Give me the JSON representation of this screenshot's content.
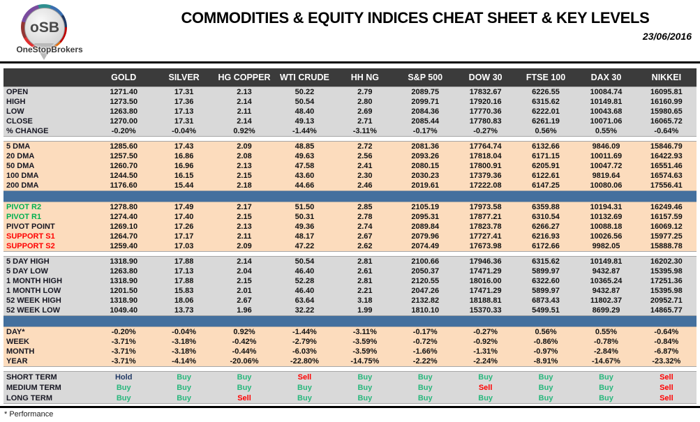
{
  "header": {
    "title": "COMMODITIES & EQUITY INDICES CHEAT SHEET & KEY LEVELS",
    "date": "23/06/2016",
    "logo_text": "oSB",
    "brand": "OneStopBrokers"
  },
  "colors": {
    "header_band": "#3b3b3b",
    "gray_band": "#d9d9d9",
    "peach_band": "#fcdcbd",
    "separator_blue": "#44709e",
    "pivot_green": "#00b050",
    "support_red": "#ff0000",
    "buy_green": "#28b77c",
    "sell_red": "#ff0000",
    "hold_navy": "#203864"
  },
  "table": {
    "columns": [
      "GOLD",
      "SILVER",
      "HG COPPER",
      "WTI CRUDE",
      "HH NG",
      "S&P 500",
      "DOW 30",
      "FTSE 100",
      "DAX 30",
      "NIKKEI"
    ],
    "sections": [
      {
        "name": "ohlc",
        "band": "gray",
        "after": "gap",
        "rows": [
          {
            "label": "OPEN",
            "values": [
              "1271.40",
              "17.31",
              "2.13",
              "50.22",
              "2.79",
              "2089.75",
              "17832.67",
              "6226.55",
              "10084.74",
              "16095.81"
            ]
          },
          {
            "label": "HIGH",
            "values": [
              "1273.50",
              "17.36",
              "2.14",
              "50.54",
              "2.80",
              "2099.71",
              "17920.16",
              "6315.62",
              "10149.81",
              "16160.99"
            ]
          },
          {
            "label": "LOW",
            "values": [
              "1263.80",
              "17.13",
              "2.11",
              "48.40",
              "2.69",
              "2084.36",
              "17770.36",
              "6222.01",
              "10043.68",
              "15980.65"
            ]
          },
          {
            "label": "CLOSE",
            "values": [
              "1270.00",
              "17.31",
              "2.14",
              "49.13",
              "2.71",
              "2085.44",
              "17780.83",
              "6261.19",
              "10071.06",
              "16065.72"
            ]
          },
          {
            "label": "% CHANGE",
            "values": [
              "-0.20%",
              "-0.04%",
              "0.92%",
              "-1.44%",
              "-3.11%",
              "-0.17%",
              "-0.27%",
              "0.56%",
              "0.55%",
              "-0.64%"
            ]
          }
        ]
      },
      {
        "name": "dma",
        "band": "peach",
        "after": "bar",
        "rows": [
          {
            "label": "5 DMA",
            "values": [
              "1285.60",
              "17.43",
              "2.09",
              "48.85",
              "2.72",
              "2081.36",
              "17764.74",
              "6132.66",
              "9846.09",
              "15846.79"
            ]
          },
          {
            "label": "20 DMA",
            "values": [
              "1257.50",
              "16.86",
              "2.08",
              "49.63",
              "2.56",
              "2093.26",
              "17818.04",
              "6171.15",
              "10011.69",
              "16422.93"
            ]
          },
          {
            "label": "50 DMA",
            "values": [
              "1260.70",
              "16.96",
              "2.13",
              "47.58",
              "2.41",
              "2080.15",
              "17800.91",
              "6205.91",
              "10047.72",
              "16551.46"
            ]
          },
          {
            "label": "100 DMA",
            "values": [
              "1244.50",
              "16.15",
              "2.15",
              "43.60",
              "2.30",
              "2030.23",
              "17379.36",
              "6122.61",
              "9819.64",
              "16574.63"
            ]
          },
          {
            "label": "200 DMA",
            "values": [
              "1176.60",
              "15.44",
              "2.18",
              "44.66",
              "2.46",
              "2019.61",
              "17222.08",
              "6147.25",
              "10080.06",
              "17556.41"
            ]
          }
        ]
      },
      {
        "name": "pivots",
        "band": "peach",
        "after": "gap",
        "rows": [
          {
            "label": "PIVOT R2",
            "label_color": "green",
            "values": [
              "1278.80",
              "17.49",
              "2.17",
              "51.50",
              "2.85",
              "2105.19",
              "17973.58",
              "6359.88",
              "10194.31",
              "16249.46"
            ]
          },
          {
            "label": "PIVOT R1",
            "label_color": "green",
            "values": [
              "1274.40",
              "17.40",
              "2.15",
              "50.31",
              "2.78",
              "2095.31",
              "17877.21",
              "6310.54",
              "10132.69",
              "16157.59"
            ]
          },
          {
            "label": "PIVOT POINT",
            "values": [
              "1269.10",
              "17.26",
              "2.13",
              "49.36",
              "2.74",
              "2089.84",
              "17823.78",
              "6266.27",
              "10088.18",
              "16069.12"
            ]
          },
          {
            "label": "SUPPORT S1",
            "label_color": "red",
            "values": [
              "1264.70",
              "17.17",
              "2.11",
              "48.17",
              "2.67",
              "2079.96",
              "17727.41",
              "6216.93",
              "10026.56",
              "15977.25"
            ]
          },
          {
            "label": "SUPPORT S2",
            "label_color": "red",
            "values": [
              "1259.40",
              "17.03",
              "2.09",
              "47.22",
              "2.62",
              "2074.49",
              "17673.98",
              "6172.66",
              "9982.05",
              "15888.78"
            ]
          }
        ]
      },
      {
        "name": "ranges",
        "band": "gray",
        "after": "bar",
        "rows": [
          {
            "label": "5 DAY HIGH",
            "values": [
              "1318.90",
              "17.88",
              "2.14",
              "50.54",
              "2.81",
              "2100.66",
              "17946.36",
              "6315.62",
              "10149.81",
              "16202.30"
            ]
          },
          {
            "label": "5 DAY LOW",
            "values": [
              "1263.80",
              "17.13",
              "2.04",
              "46.40",
              "2.61",
              "2050.37",
              "17471.29",
              "5899.97",
              "9432.87",
              "15395.98"
            ]
          },
          {
            "label": "1 MONTH HIGH",
            "values": [
              "1318.90",
              "17.88",
              "2.15",
              "52.28",
              "2.81",
              "2120.55",
              "18016.00",
              "6322.60",
              "10365.24",
              "17251.36"
            ]
          },
          {
            "label": "1 MONTH LOW",
            "values": [
              "1201.50",
              "15.83",
              "2.01",
              "46.40",
              "2.21",
              "2047.26",
              "17471.29",
              "5899.97",
              "9432.87",
              "15395.98"
            ]
          },
          {
            "label": "52 WEEK HIGH",
            "values": [
              "1318.90",
              "18.06",
              "2.67",
              "63.64",
              "3.18",
              "2132.82",
              "18188.81",
              "6873.43",
              "11802.37",
              "20952.71"
            ]
          },
          {
            "label": "52 WEEK LOW",
            "values": [
              "1049.40",
              "13.73",
              "1.96",
              "32.22",
              "1.99",
              "1810.10",
              "15370.33",
              "5499.51",
              "8699.29",
              "14865.77"
            ]
          }
        ]
      },
      {
        "name": "performance",
        "band": "peach",
        "after": "gap",
        "rows": [
          {
            "label": "DAY*",
            "values": [
              "-0.20%",
              "-0.04%",
              "0.92%",
              "-1.44%",
              "-3.11%",
              "-0.17%",
              "-0.27%",
              "0.56%",
              "0.55%",
              "-0.64%"
            ]
          },
          {
            "label": "WEEK",
            "values": [
              "-3.71%",
              "-3.18%",
              "-0.42%",
              "-2.79%",
              "-3.59%",
              "-0.72%",
              "-0.92%",
              "-0.86%",
              "-0.78%",
              "-0.84%"
            ]
          },
          {
            "label": "MONTH",
            "values": [
              "-3.71%",
              "-3.18%",
              "-0.44%",
              "-6.03%",
              "-3.59%",
              "-1.66%",
              "-1.31%",
              "-0.97%",
              "-2.84%",
              "-6.87%"
            ]
          },
          {
            "label": "YEAR",
            "values": [
              "-3.71%",
              "-4.14%",
              "-20.06%",
              "-22.80%",
              "-14.75%",
              "-2.22%",
              "-2.24%",
              "-8.91%",
              "-14.67%",
              "-23.32%"
            ]
          }
        ]
      },
      {
        "name": "signals",
        "band": "gray",
        "after": "none",
        "signals": true,
        "rows": [
          {
            "label": "SHORT TERM",
            "values": [
              "Hold",
              "Buy",
              "Buy",
              "Sell",
              "Buy",
              "Buy",
              "Buy",
              "Buy",
              "Buy",
              "Sell"
            ]
          },
          {
            "label": "MEDIUM TERM",
            "values": [
              "Buy",
              "Buy",
              "Buy",
              "Buy",
              "Buy",
              "Buy",
              "Sell",
              "Buy",
              "Buy",
              "Sell"
            ]
          },
          {
            "label": "LONG TERM",
            "values": [
              "Buy",
              "Buy",
              "Sell",
              "Buy",
              "Buy",
              "Buy",
              "Buy",
              "Buy",
              "Buy",
              "Sell"
            ]
          }
        ]
      }
    ]
  },
  "footnote": "* Performance"
}
